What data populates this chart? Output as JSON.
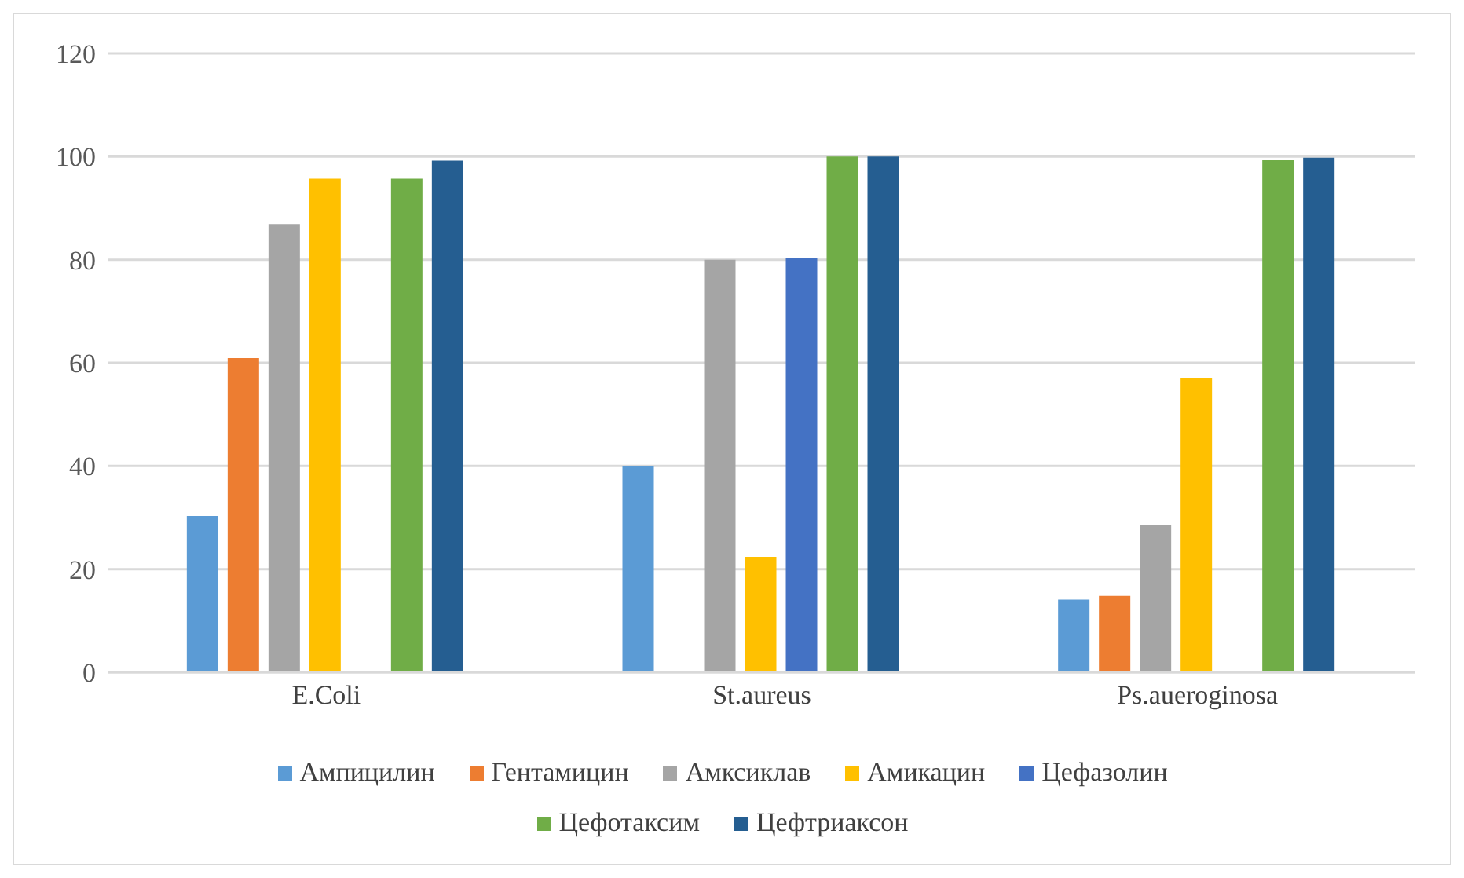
{
  "chart_data": {
    "type": "bar",
    "categories": [
      "E.Coli",
      "St.aureus",
      "Ps.aueroginosa"
    ],
    "series": [
      {
        "name": "Ампицилин",
        "color": "#5b9bd5",
        "values": [
          30.3,
          40,
          14.1
        ]
      },
      {
        "name": "Гентамицин",
        "color": "#ed7d31",
        "values": [
          60.9,
          null,
          14.8
        ]
      },
      {
        "name": "Амксиклав",
        "color": "#a5a5a5",
        "values": [
          86.9,
          80,
          28.6
        ]
      },
      {
        "name": "Амикацин",
        "color": "#ffc000",
        "values": [
          95.7,
          22.4,
          57.1
        ]
      },
      {
        "name": "Цефазолин",
        "color": "#4472c4",
        "values": [
          null,
          80.4,
          null
        ]
      },
      {
        "name": "Цефотаксим",
        "color": "#70ad47",
        "values": [
          95.7,
          100,
          99.3
        ]
      },
      {
        "name": "Цефтриаксон",
        "color": "#255e91",
        "values": [
          99.2,
          100,
          99.8
        ]
      }
    ],
    "ylim": [
      0,
      120
    ],
    "yticks": [
      0,
      20,
      40,
      60,
      80,
      100,
      120
    ],
    "grid": "y",
    "legend": "bottom"
  }
}
